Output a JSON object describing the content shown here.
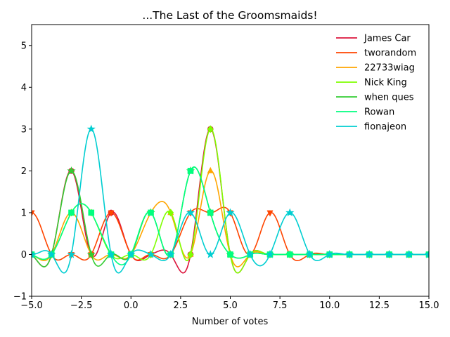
{
  "chart_data": {
    "type": "line",
    "title": "...The Last of the Groomsmaids!",
    "xlabel": "Number of votes",
    "ylabel": "",
    "xlim": [
      -5,
      15
    ],
    "ylim": [
      -1,
      5.5
    ],
    "xticks": [
      -5.0,
      -2.5,
      0.0,
      2.5,
      5.0,
      7.5,
      10.0,
      12.5,
      15.0
    ],
    "xtick_labels": [
      "−5.0",
      "−2.5",
      "0.0",
      "2.5",
      "5.0",
      "7.5",
      "10.0",
      "12.5",
      "15.0"
    ],
    "yticks": [
      -1,
      0,
      1,
      2,
      3,
      4,
      5
    ],
    "ytick_labels": [
      "−1",
      "0",
      "1",
      "2",
      "3",
      "4",
      "5"
    ],
    "legend_position": "top-right",
    "grid": false,
    "series": [
      {
        "name": "James Car",
        "color": "#dc143c",
        "marker": "circle",
        "x": [
          -5,
          -4,
          -3,
          -2,
          -1,
          0,
          1,
          2,
          3,
          4,
          5,
          6,
          7,
          8,
          9,
          10,
          11,
          12,
          13,
          14,
          15
        ],
        "y": [
          0,
          0,
          2,
          0,
          1,
          0,
          0,
          0,
          0,
          3,
          0,
          0,
          0,
          0,
          0,
          0,
          0,
          0,
          0,
          0,
          0
        ]
      },
      {
        "name": "tworandom",
        "color": "#ff4500",
        "marker": "triangle-down",
        "x": [
          -5,
          -4,
          -3,
          -2,
          -1,
          0,
          1,
          2,
          3,
          4,
          5,
          6,
          7,
          8,
          9,
          10,
          11,
          12,
          13,
          14,
          15
        ],
        "y": [
          1,
          0,
          0,
          0,
          1,
          0,
          0,
          0,
          1,
          1,
          1,
          0,
          1,
          0,
          0,
          0,
          0,
          0,
          0,
          0,
          0
        ]
      },
      {
        "name": "22733wiag",
        "color": "#ffa500",
        "marker": "triangle-up",
        "x": [
          -5,
          -4,
          -3,
          -2,
          -1,
          0,
          1,
          2,
          3,
          4,
          5,
          6,
          7,
          8,
          9,
          10,
          11,
          12,
          13,
          14,
          15
        ],
        "y": [
          0,
          0,
          1,
          0,
          0,
          0,
          1,
          1,
          0,
          2,
          0,
          0,
          0,
          0,
          0,
          0,
          0,
          0,
          0,
          0,
          0
        ]
      },
      {
        "name": "Nick King",
        "color": "#7fff00",
        "marker": "diamond",
        "x": [
          -5,
          -4,
          -3,
          -2,
          -1,
          0,
          1,
          2,
          3,
          4,
          5,
          6,
          7,
          8,
          9,
          10,
          11,
          12,
          13,
          14,
          15
        ],
        "y": [
          0,
          0,
          1,
          1,
          0,
          0,
          0,
          1,
          0,
          3,
          0,
          0,
          0,
          0,
          0,
          0,
          0,
          0,
          0,
          0,
          0
        ]
      },
      {
        "name": "when ques",
        "color": "#32cd32",
        "marker": "star",
        "x": [
          -5,
          -4,
          -3,
          -2,
          -1,
          0,
          1,
          2,
          3,
          4,
          5,
          6,
          7,
          8,
          9,
          10,
          11,
          12,
          13,
          14,
          15
        ],
        "y": [
          0,
          0,
          2,
          0,
          0,
          0,
          1,
          0,
          2,
          1,
          0,
          0,
          0,
          0,
          0,
          0,
          0,
          0,
          0,
          0,
          0
        ]
      },
      {
        "name": "Rowan",
        "color": "#00ff7f",
        "marker": "square",
        "x": [
          -5,
          -4,
          -3,
          -2,
          -1,
          0,
          1,
          2,
          3,
          4,
          5,
          6,
          7,
          8,
          9,
          10,
          11,
          12,
          13,
          14,
          15
        ],
        "y": [
          0,
          0,
          1,
          1,
          0,
          0,
          1,
          0,
          2,
          1,
          0,
          0,
          0,
          0,
          0,
          0,
          0,
          0,
          0,
          0,
          0
        ]
      },
      {
        "name": "fionajeon",
        "color": "#00ced1",
        "marker": "star",
        "x": [
          -5,
          -4,
          -3,
          -2,
          -1,
          0,
          1,
          2,
          3,
          4,
          5,
          6,
          7,
          8,
          9,
          10,
          11,
          12,
          13,
          14,
          15
        ],
        "y": [
          0,
          0,
          0,
          3,
          0,
          0,
          0,
          0,
          1,
          0,
          1,
          0,
          0,
          1,
          0,
          0,
          0,
          0,
          0,
          0,
          0
        ]
      }
    ]
  }
}
